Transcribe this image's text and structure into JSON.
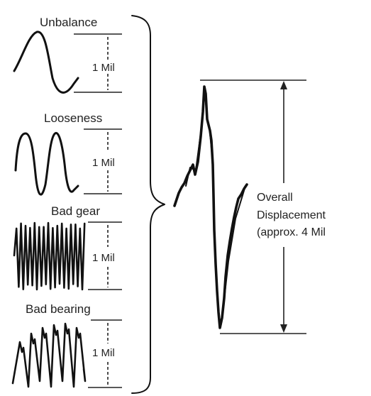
{
  "components": [
    {
      "id": "unbalance",
      "title": "Unbalance",
      "amplitude": "1 Mil"
    },
    {
      "id": "looseness",
      "title": "Looseness",
      "amplitude": "1 Mil"
    },
    {
      "id": "bad-gear",
      "title": "Bad gear",
      "amplitude": "1 Mil"
    },
    {
      "id": "bad-bearing",
      "title": "Bad bearing",
      "amplitude": "1 Mil"
    }
  ],
  "overall": {
    "line1": "Overall",
    "line2": "Displacement",
    "line3": "(approx. 4 Mil"
  },
  "colors": {
    "ink": "#111111",
    "background": "#ffffff"
  }
}
